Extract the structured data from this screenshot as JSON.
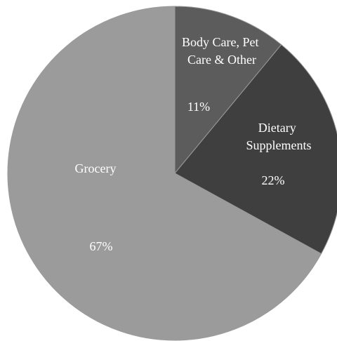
{
  "chart_data": {
    "type": "pie",
    "title": "",
    "slices": [
      {
        "label": "Body Care, Pet Care & Other",
        "label_lines": [
          "Body Care, Pet",
          "Care & Other"
        ],
        "value": 11,
        "value_label": "11%",
        "color": "#5c5c5c"
      },
      {
        "label": "Dietary Supplements",
        "label_lines": [
          "Dietary",
          "Supplements"
        ],
        "value": 22,
        "value_label": "22%",
        "color": "#3f3f3f"
      },
      {
        "label": "Grocery",
        "label_lines": [
          "Grocery"
        ],
        "value": 67,
        "value_label": "67%",
        "color": "#9b9b9b"
      }
    ],
    "start": "12 o'clock",
    "direction": "clockwise",
    "legend": "none"
  }
}
